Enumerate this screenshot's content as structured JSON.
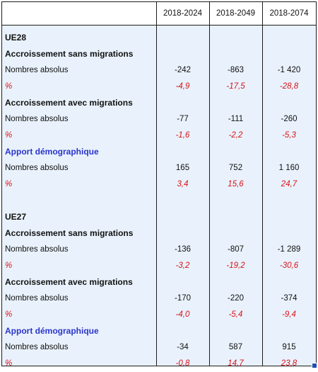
{
  "columns": [
    "2018-2024",
    "2018-2049",
    "2018-2074"
  ],
  "groups": [
    {
      "title": "UE28",
      "sections": [
        {
          "title": "Accroissement sans migrations",
          "abs_label": "Nombres absolus",
          "abs": [
            "-242",
            "-863",
            "-1 420"
          ],
          "pct_label": "%",
          "pct": [
            "-4,9",
            "-17,5",
            "-28,8"
          ]
        },
        {
          "title": "Accroissement avec migrations",
          "abs_label": "Nombres absolus",
          "abs": [
            "-77",
            "-111",
            "-260"
          ],
          "pct_label": "%",
          "pct": [
            "-1,6",
            "-2,2",
            "-5,3"
          ]
        },
        {
          "title": "Apport démographique",
          "abs_label": "Nombres absolus",
          "abs": [
            "165",
            "752",
            "1 160"
          ],
          "pct_label": "%",
          "pct": [
            "3,4",
            "15,6",
            "24,7"
          ]
        }
      ]
    },
    {
      "title": "UE27",
      "sections": [
        {
          "title": "Accroissement sans migrations",
          "abs_label": "Nombres absolus",
          "abs": [
            "-136",
            "-807",
            "-1 289"
          ],
          "pct_label": "%",
          "pct": [
            "-3,2",
            "-19,2",
            "-30,6"
          ]
        },
        {
          "title": "Accroissement avec migrations",
          "abs_label": "Nombres absolus",
          "abs": [
            "-170",
            "-220",
            "-374"
          ],
          "pct_label": "%",
          "pct": [
            "-4,0",
            "-5,4",
            "-9,4"
          ]
        },
        {
          "title": "Apport démographique",
          "abs_label": "Nombres absolus",
          "abs": [
            "-34",
            "587",
            "915"
          ],
          "pct_label": "%",
          "pct": [
            "-0,8",
            "14,7",
            "23,8"
          ]
        }
      ]
    }
  ],
  "colors": {
    "section_blue": "#2b35c9",
    "percent_red": "#d8141a",
    "cell_fill": "#e9f2fc",
    "selection": "#1b4fb5"
  }
}
